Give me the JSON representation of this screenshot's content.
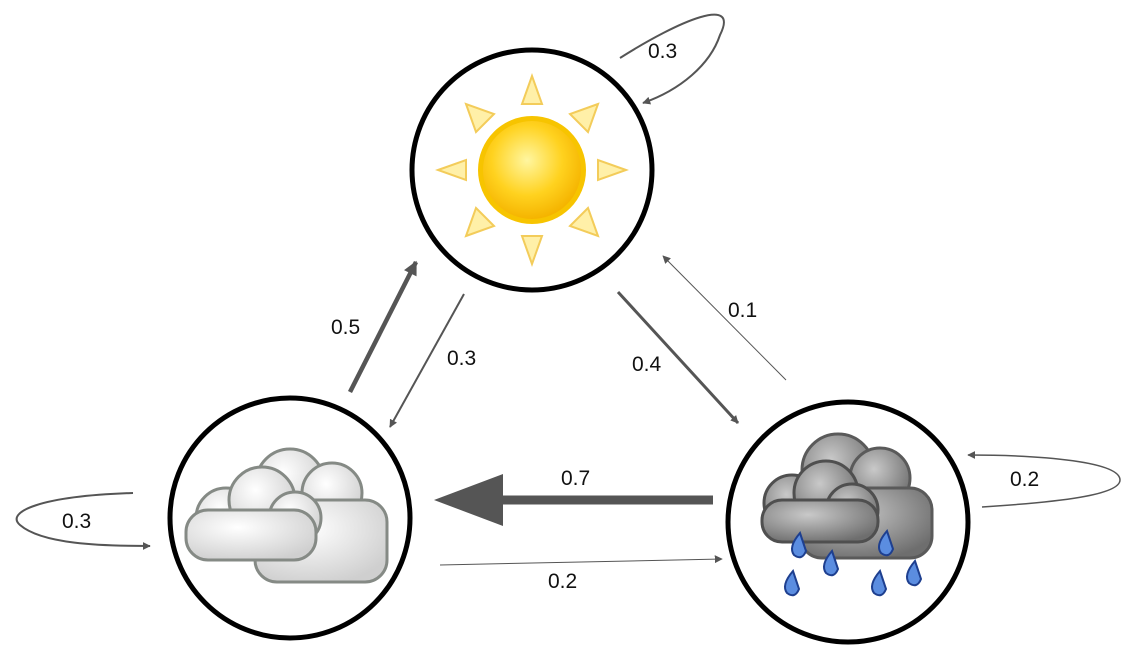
{
  "nodes": [
    {
      "id": "sunny",
      "icon": "sun-icon"
    },
    {
      "id": "cloudy",
      "icon": "cloud-icon"
    },
    {
      "id": "rainy",
      "icon": "rain-cloud-icon"
    }
  ],
  "transitions": {
    "sunny_to_sunny": "0.3",
    "sunny_to_cloudy": "0.3",
    "sunny_to_rainy": "0.4",
    "cloudy_to_sunny": "0.5",
    "cloudy_to_cloudy": "0.3",
    "cloudy_to_rainy": "0.2",
    "rainy_to_sunny": "0.1",
    "rainy_to_cloudy": "0.7",
    "rainy_to_rainy": "0.2"
  },
  "colors": {
    "edge": "#555555",
    "sun_core": "#ffd21f",
    "sun_ray": "#fff0a8",
    "cloud": "#e6e6e6",
    "storm_cloud": "#8a8a8a",
    "raindrop": "#3a6fd0"
  }
}
